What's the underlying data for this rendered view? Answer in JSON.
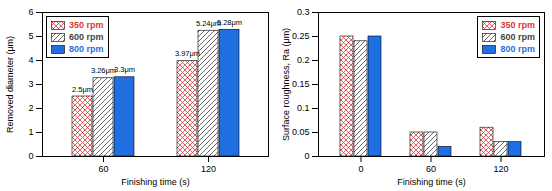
{
  "chart_data": [
    {
      "type": "bar",
      "x_label": "Finishing time (s)",
      "y_label": "Removed diameter (μm)",
      "categories": [
        "60",
        "120"
      ],
      "series": [
        {
          "name": "350 rpm",
          "color": "#d9383a",
          "values": [
            2.5,
            3.97
          ],
          "value_labels": [
            "2.5μm",
            "3.97μm"
          ]
        },
        {
          "name": "600 rpm",
          "color": "#444444",
          "values": [
            3.26,
            5.24
          ],
          "value_labels": [
            "3.26μm",
            "5.24μm"
          ]
        },
        {
          "name": "800 rpm",
          "color": "#1f6fe0",
          "values": [
            3.3,
            5.28
          ],
          "value_labels": [
            "3.3μm",
            "5.28μm"
          ]
        }
      ],
      "ylim": [
        0,
        6
      ],
      "yticks": [
        0,
        1,
        2,
        3,
        4,
        5,
        6
      ],
      "data_labels": true,
      "legend": "top-left",
      "grid": false
    },
    {
      "type": "bar",
      "x_label": "Finishing time (s)",
      "y_label": "Surface roughness, Ra (μm)",
      "categories": [
        "0",
        "60",
        "120"
      ],
      "series": [
        {
          "name": "350 rpm",
          "color": "#d9383a",
          "values": [
            0.25,
            0.05,
            0.06
          ]
        },
        {
          "name": "600 rpm",
          "color": "#444444",
          "values": [
            0.24,
            0.05,
            0.03
          ]
        },
        {
          "name": "800 rpm",
          "color": "#1f6fe0",
          "values": [
            0.25,
            0.02,
            0.03
          ]
        }
      ],
      "ylim": [
        0,
        0.3
      ],
      "yticks": [
        0,
        0.05,
        0.1,
        0.15,
        0.2,
        0.25,
        0.3
      ],
      "data_labels": false,
      "legend": "top-right",
      "grid": false
    }
  ]
}
